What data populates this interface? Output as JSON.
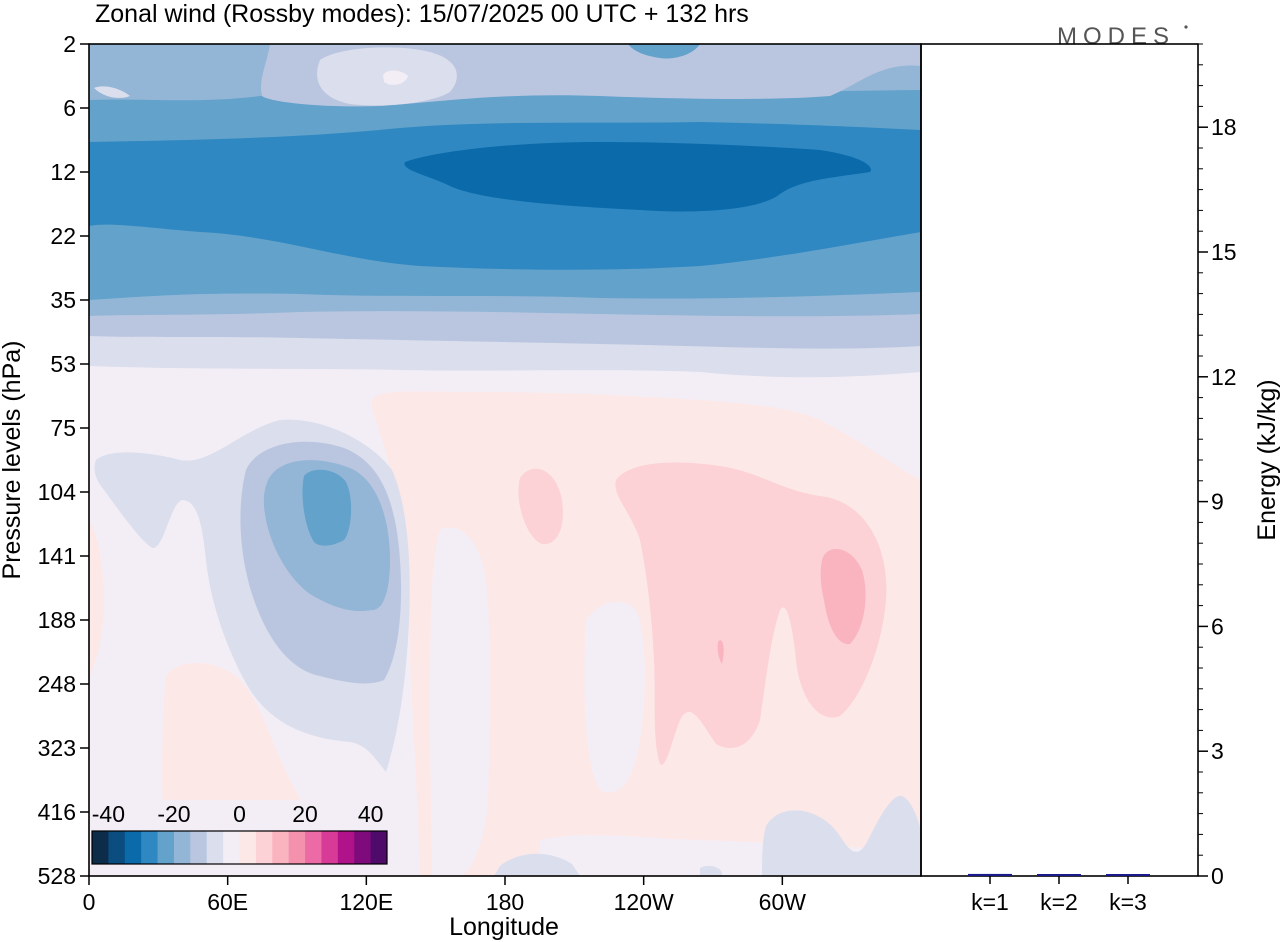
{
  "title": "Zonal wind (Rossby modes):  15/07/2025  00 UTC  + 132 hrs",
  "logo": "MODES",
  "chart_data": [
    {
      "type": "heatmap",
      "xlabel": "Longitude",
      "ylabel": "Pressure levels (hPa)",
      "x_ticks": [
        "0",
        "60E",
        "120E",
        "180",
        "120W",
        "60W"
      ],
      "y_ticks": [
        "2",
        "6",
        "12",
        "22",
        "35",
        "53",
        "75",
        "104",
        "141",
        "188",
        "248",
        "323",
        "416",
        "528"
      ],
      "colorbar": {
        "tick_labels": [
          "-40",
          "-20",
          "0",
          "20",
          "40"
        ],
        "range": [
          -45,
          45
        ],
        "colors": [
          "#0c2c4a",
          "#0b4d7e",
          "#0a6aaa",
          "#2f88c1",
          "#63a2cb",
          "#93b6d6",
          "#bac6e0",
          "#dbdeec",
          "#f3eef6",
          "#fde8e8",
          "#fcd2d6",
          "#f9b4c0",
          "#f491ad",
          "#ec6aa5",
          "#d83a98",
          "#b01289",
          "#7e0a7b",
          "#4e0b6a"
        ]
      },
      "bands": [
        {
          "level": "2-6",
          "value": -15
        },
        {
          "level": "6-12",
          "value": -22
        },
        {
          "level": "12-22",
          "value": -32
        },
        {
          "level": "22-35",
          "value": -22
        },
        {
          "level": "35-53",
          "value": -8
        },
        {
          "level": "53-528",
          "value": 0
        }
      ],
      "features": [
        {
          "description": "negative core near 100E",
          "value": -22,
          "level_range": [
            "104",
            "141"
          ]
        },
        {
          "description": "negative lobe 60E-130E",
          "value": -12,
          "level_range": [
            "75",
            "323"
          ]
        },
        {
          "description": "positive core near 70W",
          "value": 12,
          "level_range": [
            "141",
            "188"
          ]
        },
        {
          "description": "positive lobe 140W-60W",
          "value": 6,
          "level_range": [
            "104",
            "323"
          ]
        },
        {
          "description": "strongest easterlies 120E-100W",
          "value": -38,
          "level_range": [
            "12",
            "22"
          ]
        }
      ]
    },
    {
      "type": "bar",
      "ylabel": "Energy (kJ/kg)",
      "categories": [
        "k=1",
        "k=2",
        "k=3"
      ],
      "values": [
        0.05,
        0.03,
        0.01
      ],
      "ylim": [
        0,
        20
      ],
      "y_ticks": [
        0,
        3,
        6,
        9,
        12,
        15,
        18
      ],
      "bar_color": "#1a1a8c"
    }
  ]
}
